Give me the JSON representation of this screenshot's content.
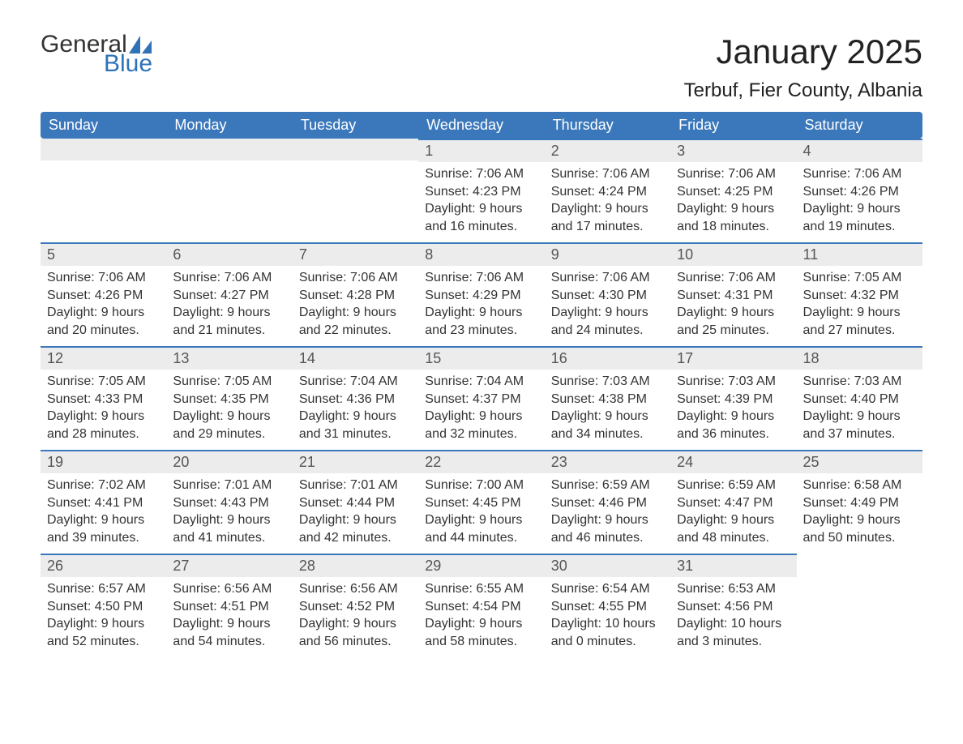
{
  "brand": {
    "word1": "General",
    "word2": "Blue",
    "accent_color": "#2f72b8"
  },
  "title": "January 2025",
  "location": "Terbuf, Fier County, Albania",
  "colors": {
    "header_bg": "#3b78bb",
    "header_text": "#ffffff",
    "daynum_bg": "#ececec",
    "daynum_text": "#555555",
    "row_divider": "#3b78bb",
    "body_text": "#333333",
    "page_bg": "#ffffff"
  },
  "typography": {
    "title_fontsize_pt": 32,
    "location_fontsize_pt": 18,
    "weekday_fontsize_pt": 14,
    "daynum_fontsize_pt": 14,
    "body_fontsize_pt": 12
  },
  "calendar": {
    "type": "table",
    "weekday_labels": [
      "Sunday",
      "Monday",
      "Tuesday",
      "Wednesday",
      "Thursday",
      "Friday",
      "Saturday"
    ],
    "weeks": [
      [
        null,
        null,
        null,
        {
          "n": "1",
          "sunrise": "Sunrise: 7:06 AM",
          "sunset": "Sunset: 4:23 PM",
          "d1": "Daylight: 9 hours",
          "d2": "and 16 minutes."
        },
        {
          "n": "2",
          "sunrise": "Sunrise: 7:06 AM",
          "sunset": "Sunset: 4:24 PM",
          "d1": "Daylight: 9 hours",
          "d2": "and 17 minutes."
        },
        {
          "n": "3",
          "sunrise": "Sunrise: 7:06 AM",
          "sunset": "Sunset: 4:25 PM",
          "d1": "Daylight: 9 hours",
          "d2": "and 18 minutes."
        },
        {
          "n": "4",
          "sunrise": "Sunrise: 7:06 AM",
          "sunset": "Sunset: 4:26 PM",
          "d1": "Daylight: 9 hours",
          "d2": "and 19 minutes."
        }
      ],
      [
        {
          "n": "5",
          "sunrise": "Sunrise: 7:06 AM",
          "sunset": "Sunset: 4:26 PM",
          "d1": "Daylight: 9 hours",
          "d2": "and 20 minutes."
        },
        {
          "n": "6",
          "sunrise": "Sunrise: 7:06 AM",
          "sunset": "Sunset: 4:27 PM",
          "d1": "Daylight: 9 hours",
          "d2": "and 21 minutes."
        },
        {
          "n": "7",
          "sunrise": "Sunrise: 7:06 AM",
          "sunset": "Sunset: 4:28 PM",
          "d1": "Daylight: 9 hours",
          "d2": "and 22 minutes."
        },
        {
          "n": "8",
          "sunrise": "Sunrise: 7:06 AM",
          "sunset": "Sunset: 4:29 PM",
          "d1": "Daylight: 9 hours",
          "d2": "and 23 minutes."
        },
        {
          "n": "9",
          "sunrise": "Sunrise: 7:06 AM",
          "sunset": "Sunset: 4:30 PM",
          "d1": "Daylight: 9 hours",
          "d2": "and 24 minutes."
        },
        {
          "n": "10",
          "sunrise": "Sunrise: 7:06 AM",
          "sunset": "Sunset: 4:31 PM",
          "d1": "Daylight: 9 hours",
          "d2": "and 25 minutes."
        },
        {
          "n": "11",
          "sunrise": "Sunrise: 7:05 AM",
          "sunset": "Sunset: 4:32 PM",
          "d1": "Daylight: 9 hours",
          "d2": "and 27 minutes."
        }
      ],
      [
        {
          "n": "12",
          "sunrise": "Sunrise: 7:05 AM",
          "sunset": "Sunset: 4:33 PM",
          "d1": "Daylight: 9 hours",
          "d2": "and 28 minutes."
        },
        {
          "n": "13",
          "sunrise": "Sunrise: 7:05 AM",
          "sunset": "Sunset: 4:35 PM",
          "d1": "Daylight: 9 hours",
          "d2": "and 29 minutes."
        },
        {
          "n": "14",
          "sunrise": "Sunrise: 7:04 AM",
          "sunset": "Sunset: 4:36 PM",
          "d1": "Daylight: 9 hours",
          "d2": "and 31 minutes."
        },
        {
          "n": "15",
          "sunrise": "Sunrise: 7:04 AM",
          "sunset": "Sunset: 4:37 PM",
          "d1": "Daylight: 9 hours",
          "d2": "and 32 minutes."
        },
        {
          "n": "16",
          "sunrise": "Sunrise: 7:03 AM",
          "sunset": "Sunset: 4:38 PM",
          "d1": "Daylight: 9 hours",
          "d2": "and 34 minutes."
        },
        {
          "n": "17",
          "sunrise": "Sunrise: 7:03 AM",
          "sunset": "Sunset: 4:39 PM",
          "d1": "Daylight: 9 hours",
          "d2": "and 36 minutes."
        },
        {
          "n": "18",
          "sunrise": "Sunrise: 7:03 AM",
          "sunset": "Sunset: 4:40 PM",
          "d1": "Daylight: 9 hours",
          "d2": "and 37 minutes."
        }
      ],
      [
        {
          "n": "19",
          "sunrise": "Sunrise: 7:02 AM",
          "sunset": "Sunset: 4:41 PM",
          "d1": "Daylight: 9 hours",
          "d2": "and 39 minutes."
        },
        {
          "n": "20",
          "sunrise": "Sunrise: 7:01 AM",
          "sunset": "Sunset: 4:43 PM",
          "d1": "Daylight: 9 hours",
          "d2": "and 41 minutes."
        },
        {
          "n": "21",
          "sunrise": "Sunrise: 7:01 AM",
          "sunset": "Sunset: 4:44 PM",
          "d1": "Daylight: 9 hours",
          "d2": "and 42 minutes."
        },
        {
          "n": "22",
          "sunrise": "Sunrise: 7:00 AM",
          "sunset": "Sunset: 4:45 PM",
          "d1": "Daylight: 9 hours",
          "d2": "and 44 minutes."
        },
        {
          "n": "23",
          "sunrise": "Sunrise: 6:59 AM",
          "sunset": "Sunset: 4:46 PM",
          "d1": "Daylight: 9 hours",
          "d2": "and 46 minutes."
        },
        {
          "n": "24",
          "sunrise": "Sunrise: 6:59 AM",
          "sunset": "Sunset: 4:47 PM",
          "d1": "Daylight: 9 hours",
          "d2": "and 48 minutes."
        },
        {
          "n": "25",
          "sunrise": "Sunrise: 6:58 AM",
          "sunset": "Sunset: 4:49 PM",
          "d1": "Daylight: 9 hours",
          "d2": "and 50 minutes."
        }
      ],
      [
        {
          "n": "26",
          "sunrise": "Sunrise: 6:57 AM",
          "sunset": "Sunset: 4:50 PM",
          "d1": "Daylight: 9 hours",
          "d2": "and 52 minutes."
        },
        {
          "n": "27",
          "sunrise": "Sunrise: 6:56 AM",
          "sunset": "Sunset: 4:51 PM",
          "d1": "Daylight: 9 hours",
          "d2": "and 54 minutes."
        },
        {
          "n": "28",
          "sunrise": "Sunrise: 6:56 AM",
          "sunset": "Sunset: 4:52 PM",
          "d1": "Daylight: 9 hours",
          "d2": "and 56 minutes."
        },
        {
          "n": "29",
          "sunrise": "Sunrise: 6:55 AM",
          "sunset": "Sunset: 4:54 PM",
          "d1": "Daylight: 9 hours",
          "d2": "and 58 minutes."
        },
        {
          "n": "30",
          "sunrise": "Sunrise: 6:54 AM",
          "sunset": "Sunset: 4:55 PM",
          "d1": "Daylight: 10 hours",
          "d2": "and 0 minutes."
        },
        {
          "n": "31",
          "sunrise": "Sunrise: 6:53 AM",
          "sunset": "Sunset: 4:56 PM",
          "d1": "Daylight: 10 hours",
          "d2": "and 3 minutes."
        },
        null
      ]
    ]
  }
}
